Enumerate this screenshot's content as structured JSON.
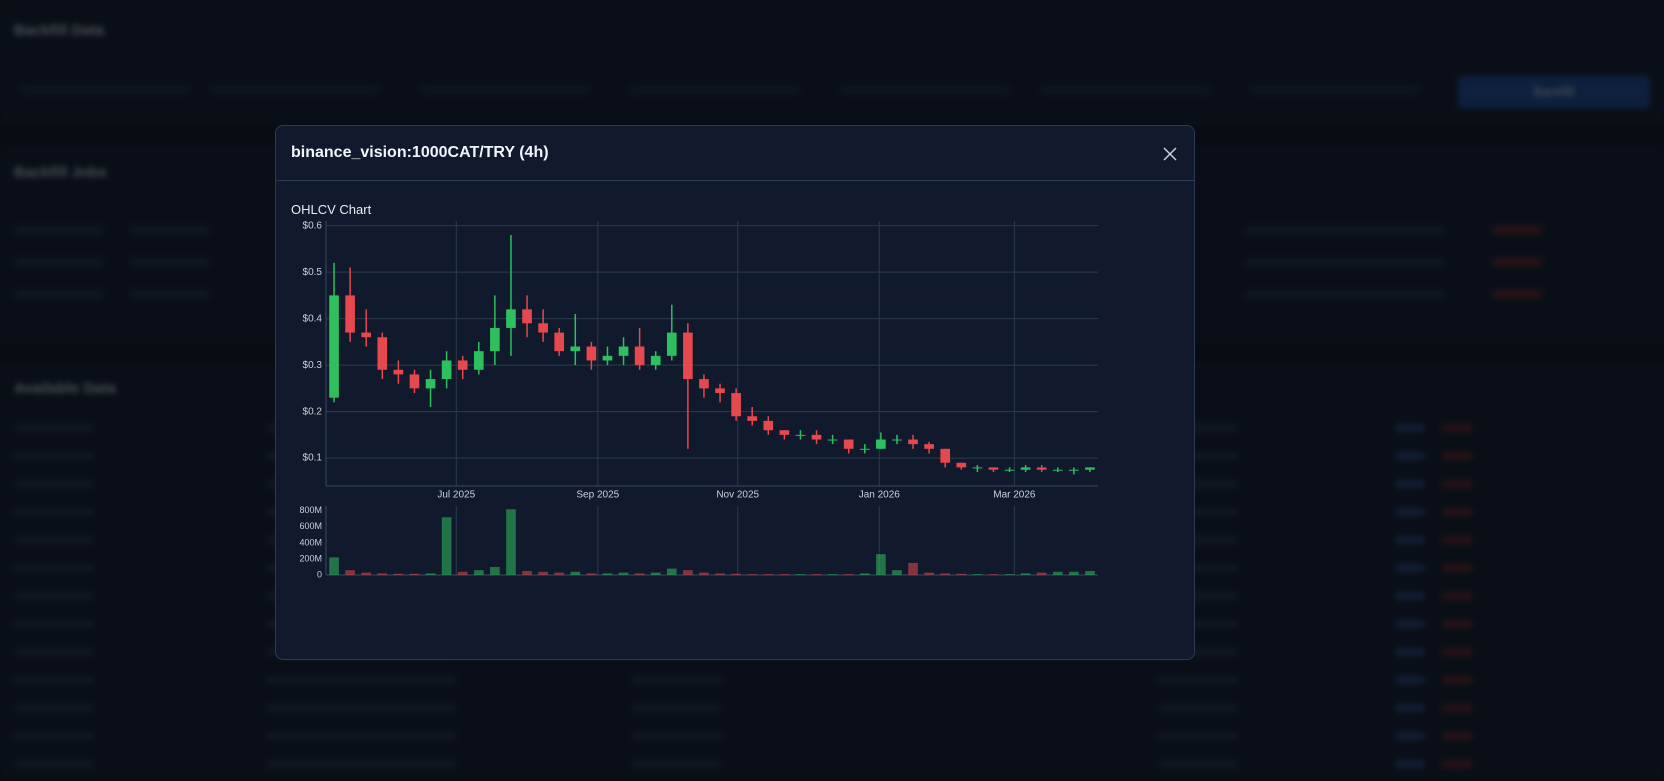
{
  "background": {
    "sections": [
      "Backfill Data",
      "Backfill Jobs",
      "Available Data"
    ],
    "button": "Backfill"
  },
  "modal": {
    "title": "binance_vision:1000CAT/TRY (4h)"
  },
  "chart_data": {
    "type": "candlestick",
    "title": "OHLCV Chart",
    "xlim": [
      -0.5,
      47.5
    ],
    "xticks": [
      {
        "value": 7.6,
        "label": "Jul 2025"
      },
      {
        "value": 16.4,
        "label": "Sep 2025"
      },
      {
        "value": 25.1,
        "label": "Nov 2025"
      },
      {
        "value": 33.9,
        "label": "Jan 2026"
      },
      {
        "value": 42.3,
        "label": "Mar 2026"
      }
    ],
    "ylim": [
      0.04,
      0.61
    ],
    "yticks": [
      {
        "value": 0.1,
        "label": "$0.1"
      },
      {
        "value": 0.2,
        "label": "$0.2"
      },
      {
        "value": 0.3,
        "label": "$0.3"
      },
      {
        "value": 0.4,
        "label": "$0.4"
      },
      {
        "value": 0.5,
        "label": "$0.5"
      },
      {
        "value": 0.6,
        "label": "$0.6"
      }
    ],
    "grid": true,
    "up_color": "#2fbf5f",
    "down_color": "#e5484d",
    "open": [
      0.23,
      0.45,
      0.37,
      0.36,
      0.29,
      0.28,
      0.25,
      0.27,
      0.31,
      0.29,
      0.33,
      0.38,
      0.42,
      0.39,
      0.37,
      0.33,
      0.34,
      0.31,
      0.32,
      0.34,
      0.3,
      0.32,
      0.37,
      0.27,
      0.25,
      0.24,
      0.19,
      0.18,
      0.16,
      0.15,
      0.15,
      0.14,
      0.14,
      0.12,
      0.12,
      0.14,
      0.14,
      0.13,
      0.12,
      0.09,
      0.08,
      0.08,
      0.075,
      0.075,
      0.08,
      0.075,
      0.075,
      0.075
    ],
    "high": [
      0.52,
      0.51,
      0.42,
      0.37,
      0.31,
      0.29,
      0.29,
      0.33,
      0.32,
      0.35,
      0.45,
      0.58,
      0.45,
      0.42,
      0.38,
      0.41,
      0.35,
      0.34,
      0.36,
      0.38,
      0.33,
      0.43,
      0.39,
      0.28,
      0.26,
      0.25,
      0.21,
      0.19,
      0.16,
      0.16,
      0.16,
      0.15,
      0.14,
      0.13,
      0.155,
      0.15,
      0.15,
      0.135,
      0.12,
      0.09,
      0.085,
      0.08,
      0.08,
      0.085,
      0.085,
      0.08,
      0.08,
      0.08
    ],
    "low": [
      0.22,
      0.35,
      0.34,
      0.27,
      0.26,
      0.24,
      0.21,
      0.25,
      0.27,
      0.28,
      0.3,
      0.32,
      0.36,
      0.35,
      0.32,
      0.3,
      0.29,
      0.3,
      0.3,
      0.29,
      0.29,
      0.31,
      0.12,
      0.23,
      0.22,
      0.18,
      0.17,
      0.15,
      0.14,
      0.14,
      0.13,
      0.13,
      0.11,
      0.11,
      0.12,
      0.13,
      0.12,
      0.11,
      0.08,
      0.075,
      0.07,
      0.07,
      0.07,
      0.07,
      0.07,
      0.07,
      0.065,
      0.07
    ],
    "close": [
      0.45,
      0.37,
      0.36,
      0.29,
      0.28,
      0.25,
      0.27,
      0.31,
      0.29,
      0.33,
      0.38,
      0.42,
      0.39,
      0.37,
      0.33,
      0.34,
      0.31,
      0.32,
      0.34,
      0.3,
      0.32,
      0.37,
      0.27,
      0.25,
      0.24,
      0.19,
      0.18,
      0.16,
      0.15,
      0.15,
      0.14,
      0.14,
      0.12,
      0.12,
      0.14,
      0.14,
      0.13,
      0.12,
      0.09,
      0.08,
      0.08,
      0.075,
      0.075,
      0.08,
      0.075,
      0.075,
      0.075,
      0.08
    ],
    "volume": {
      "ylim": [
        0,
        860000000
      ],
      "yticks": [
        0,
        {
          "value": 200000000,
          "label": "200M"
        },
        {
          "value": 400000000,
          "label": "400M"
        },
        {
          "value": 600000000,
          "label": "600M"
        },
        {
          "value": 800000000,
          "label": "800M"
        }
      ],
      "values": [
        220000000,
        60000000,
        30000000,
        20000000,
        15000000,
        15000000,
        20000000,
        720000000,
        40000000,
        60000000,
        100000000,
        820000000,
        50000000,
        40000000,
        30000000,
        40000000,
        20000000,
        20000000,
        30000000,
        20000000,
        30000000,
        80000000,
        60000000,
        30000000,
        20000000,
        15000000,
        10000000,
        10000000,
        10000000,
        10000000,
        10000000,
        10000000,
        10000000,
        20000000,
        260000000,
        60000000,
        150000000,
        30000000,
        20000000,
        15000000,
        10000000,
        10000000,
        10000000,
        20000000,
        30000000,
        40000000,
        40000000,
        50000000
      ]
    }
  }
}
